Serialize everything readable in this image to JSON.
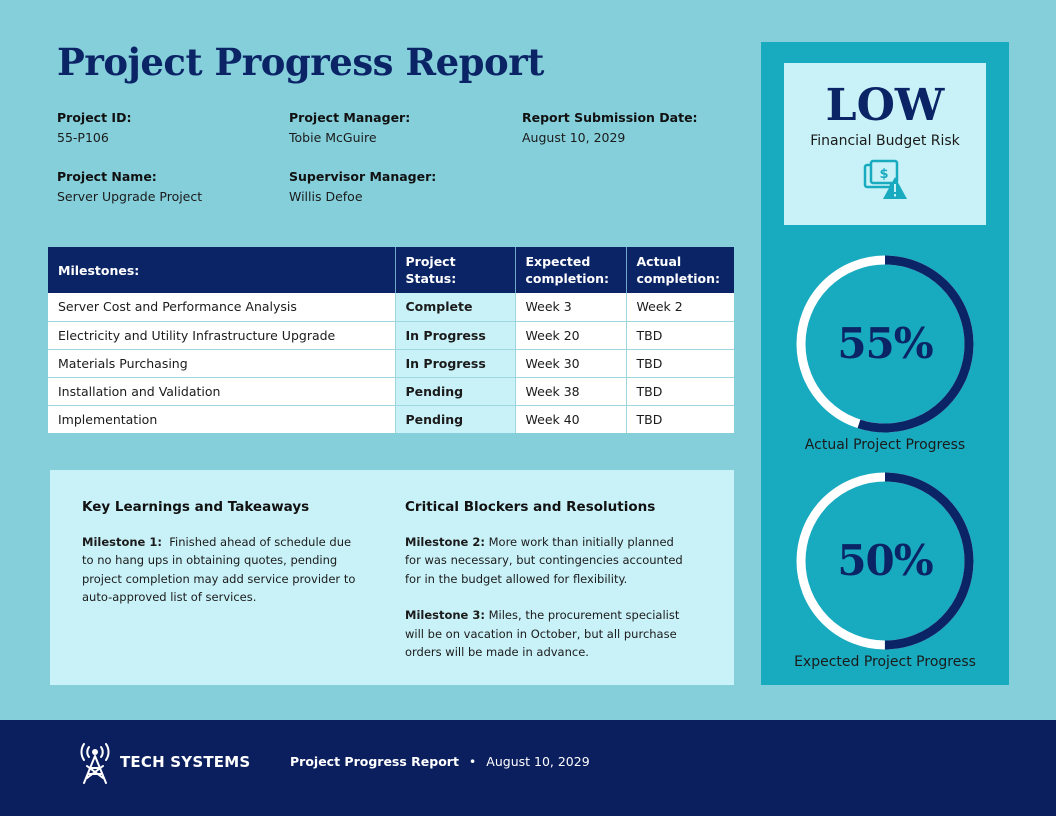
{
  "title": "Project Progress Report",
  "info": {
    "project_id": {
      "label": "Project ID:",
      "value": "55-P106"
    },
    "project_manager": {
      "label": "Project Manager:",
      "value": "Tobie McGuire"
    },
    "report_date": {
      "label": "Report Submission Date:",
      "value": "August 10, 2029"
    },
    "project_name": {
      "label": "Project Name:",
      "value": "Server Upgrade Project"
    },
    "supervisor": {
      "label": "Supervisor Manager:",
      "value": "Willis Defoe"
    }
  },
  "table": {
    "headers": [
      "Milestones:",
      "Project Status:",
      "Expected completion:",
      "Actual completion:"
    ],
    "rows": [
      [
        "Server Cost and Performance Analysis",
        "Complete",
        "Week 3",
        "Week 2"
      ],
      [
        "Electricity and Utility Infrastructure Upgrade",
        "In Progress",
        "Week 20",
        "TBD"
      ],
      [
        "Materials Purchasing",
        "In Progress",
        "Week 30",
        "TBD"
      ],
      [
        "Installation and Validation",
        "Pending",
        "Week 38",
        "TBD"
      ],
      [
        "Implementation",
        "Pending",
        "Week 40",
        "TBD"
      ]
    ]
  },
  "learnings": {
    "title": "Key Learnings and Takeaways",
    "items": [
      {
        "label": "Milestone 1:",
        "text": "Finished ahead of schedule due to no hang ups in obtaining quotes, pending project completion may add service provider to auto-approved list of services."
      }
    ]
  },
  "blockers": {
    "title": "Critical Blockers and Resolutions",
    "items": [
      {
        "label": "Milestone 2:",
        "text": "More work than initially planned for was necessary, but contingencies accounted for in the budget allowed for flexibility."
      },
      {
        "label": "Milestone 3:",
        "text": "Miles, the procurement specialist will be on vacation in October, but all purchase orders will be made in advance."
      }
    ]
  },
  "risk": {
    "level": "LOW",
    "label": "Financial Budget Risk",
    "icon": "money-warning-icon"
  },
  "progress": {
    "actual": {
      "percent_text": "55%",
      "value": 0.55,
      "label": "Actual Project Progress"
    },
    "expected": {
      "percent_text": "50%",
      "value": 0.5,
      "label": "Expected Project Progress"
    }
  },
  "footer": {
    "brand": "TECH SYSTEMS",
    "report_title": "Project Progress Report",
    "separator": "•",
    "date": "August 10, 2029"
  },
  "colors": {
    "navy": "#0b2466",
    "teal": "#18aabf",
    "light": "#c9f2f8",
    "background": "#85cfdb",
    "footer": "#0b1f5e"
  }
}
